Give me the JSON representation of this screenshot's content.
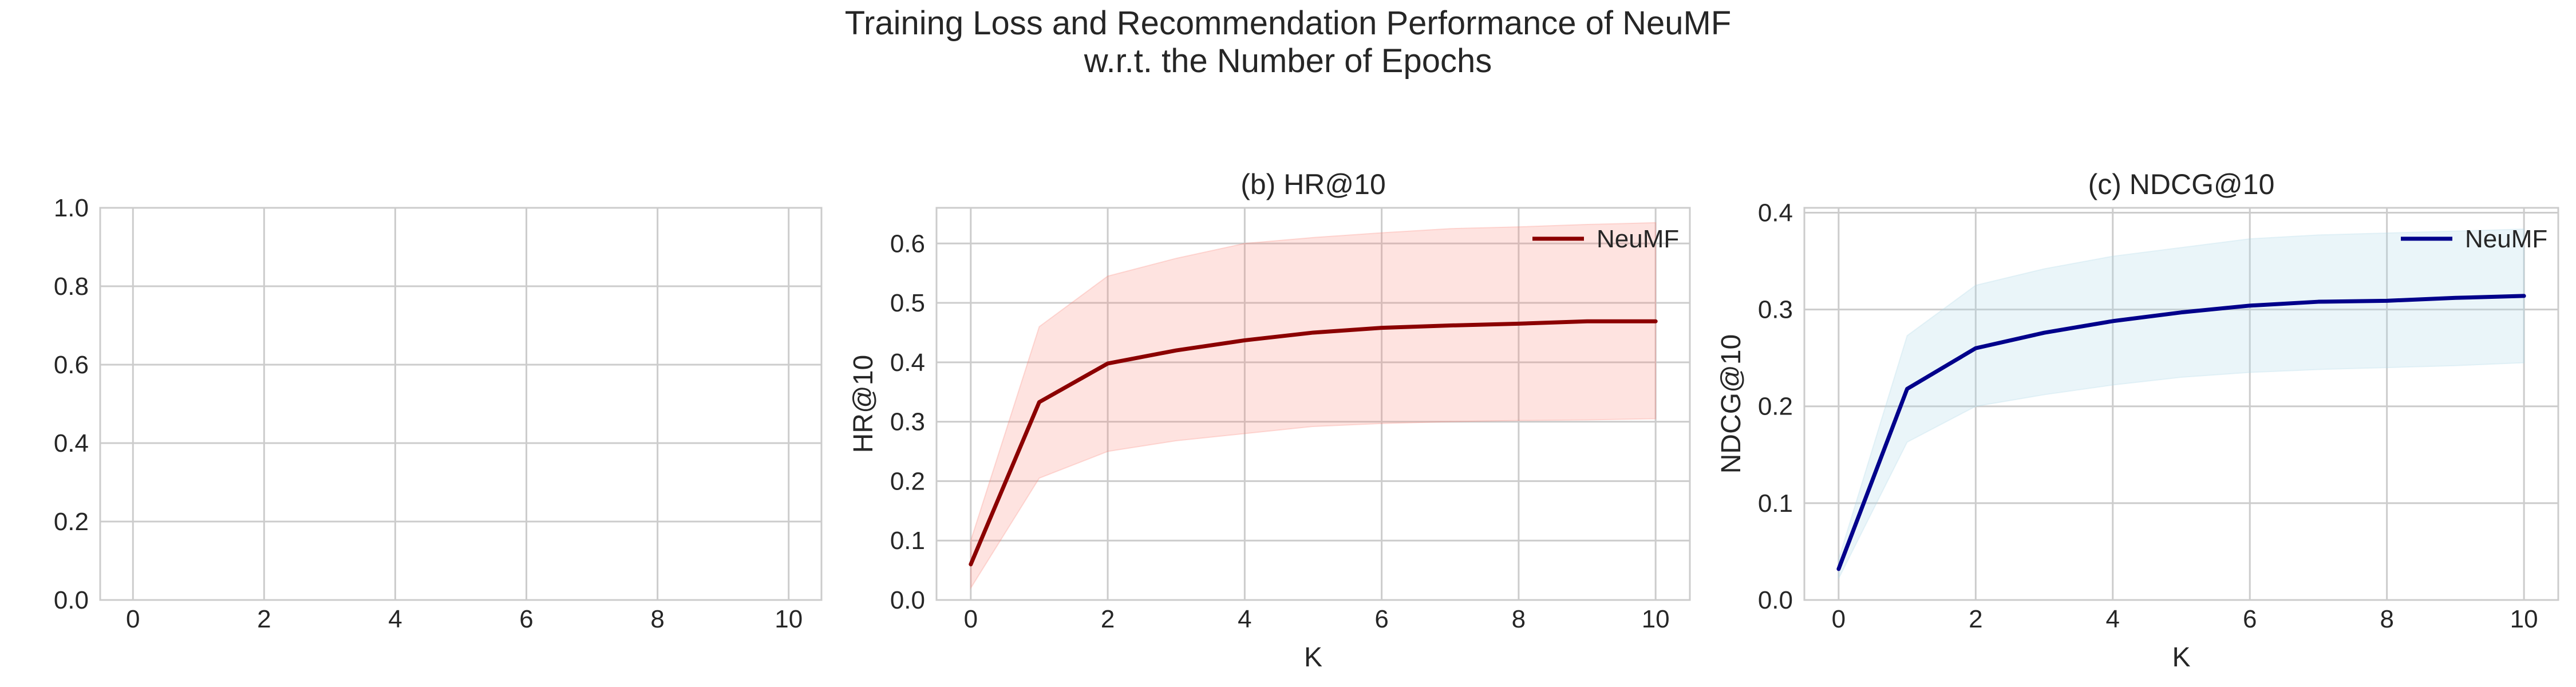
{
  "figure": {
    "title_line1": "Training Loss and Recommendation Performance of NeuMF",
    "title_line2": "w.r.t. the Number of Epochs"
  },
  "chart_data": [
    {
      "type": "line",
      "title": "",
      "xlabel": "",
      "ylabel": "",
      "xlim": [
        -0.5,
        10.5
      ],
      "ylim": [
        0.0,
        1.0
      ],
      "xticks": [
        "0",
        "2",
        "4",
        "6",
        "8",
        "10"
      ],
      "yticks": [
        "0.0",
        "0.2",
        "0.4",
        "0.6",
        "0.8",
        "1.0"
      ],
      "grid": true,
      "series": []
    },
    {
      "type": "line",
      "title": "(b) HR@10",
      "xlabel": "K",
      "ylabel": "HR@10",
      "xlim": [
        -0.5,
        10.5
      ],
      "ylim": [
        0.0,
        0.66
      ],
      "xticks": [
        "0",
        "2",
        "4",
        "6",
        "8",
        "10"
      ],
      "yticks": [
        "0.0",
        "0.1",
        "0.2",
        "0.3",
        "0.4",
        "0.5",
        "0.6"
      ],
      "grid": true,
      "legend": "top-right",
      "colors": {
        "line": "#8b0000",
        "band": "#fa8072"
      },
      "series": [
        {
          "name": "NeuMF",
          "x": [
            0,
            1,
            2,
            3,
            4,
            5,
            6,
            7,
            8,
            9,
            10
          ],
          "values": [
            0.06,
            0.333,
            0.398,
            0.42,
            0.437,
            0.45,
            0.458,
            0.462,
            0.465,
            0.469,
            0.469
          ],
          "band_low": [
            0.02,
            0.205,
            0.25,
            0.268,
            0.28,
            0.292,
            0.297,
            0.3,
            0.302,
            0.303,
            0.305
          ],
          "band_high": [
            0.1,
            0.46,
            0.545,
            0.575,
            0.6,
            0.61,
            0.618,
            0.625,
            0.628,
            0.632,
            0.635
          ]
        }
      ]
    },
    {
      "type": "line",
      "title": "(c) NDCG@10",
      "xlabel": "K",
      "ylabel": "NDCG@10",
      "xlim": [
        -0.5,
        10.5
      ],
      "ylim": [
        0.0,
        0.405
      ],
      "xticks": [
        "0",
        "2",
        "4",
        "6",
        "8",
        "10"
      ],
      "yticks": [
        "0.0",
        "0.1",
        "0.2",
        "0.3",
        "0.4"
      ],
      "grid": true,
      "legend": "top-right",
      "colors": {
        "line": "#00008b",
        "band": "#add8e6"
      },
      "series": [
        {
          "name": "NeuMF",
          "x": [
            0,
            1,
            2,
            3,
            4,
            5,
            6,
            7,
            8,
            9,
            10
          ],
          "values": [
            0.032,
            0.218,
            0.26,
            0.276,
            0.288,
            0.297,
            0.304,
            0.308,
            0.309,
            0.312,
            0.314
          ],
          "band_low": [
            0.022,
            0.163,
            0.2,
            0.212,
            0.222,
            0.23,
            0.235,
            0.238,
            0.24,
            0.242,
            0.245
          ],
          "band_high": [
            0.042,
            0.273,
            0.325,
            0.342,
            0.355,
            0.364,
            0.373,
            0.377,
            0.379,
            0.381,
            0.383
          ]
        }
      ]
    }
  ]
}
